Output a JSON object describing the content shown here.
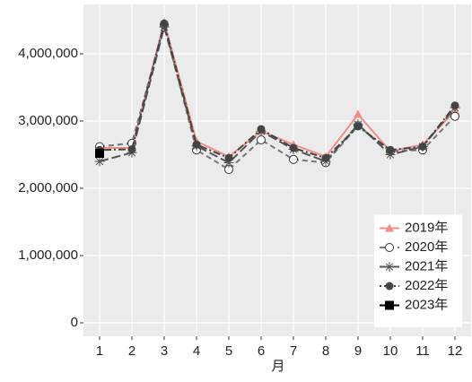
{
  "chart_data": {
    "type": "line",
    "x_label": "月",
    "categories": [
      "1",
      "2",
      "3",
      "4",
      "5",
      "6",
      "7",
      "8",
      "9",
      "10",
      "11",
      "12"
    ],
    "ylim": [
      -200000,
      4733000
    ],
    "yticks": [
      0,
      {
        "value": 1000000,
        "label": "1,000,000"
      },
      {
        "value": 2000000,
        "label": "2,000,000"
      },
      {
        "value": 3000000,
        "label": "3,000,000"
      },
      {
        "value": 4000000,
        "label": "4,000,000"
      }
    ],
    "grid": true,
    "legend": "bottom-right",
    "series": [
      {
        "name": "2019年",
        "color": "#f28e8a",
        "dash": "solid",
        "marker": "triangle",
        "values": [
          2600000,
          2600000,
          4470000,
          2700000,
          2470000,
          2850000,
          2650000,
          2470000,
          3100000,
          2550000,
          2650000,
          3150000
        ]
      },
      {
        "name": "2020年",
        "color": "#777777",
        "dash": "dashed",
        "marker": "circle-open",
        "values": [
          2620000,
          2670000,
          4430000,
          2570000,
          2280000,
          2720000,
          2430000,
          2380000,
          2930000,
          2550000,
          2570000,
          3070000
        ]
      },
      {
        "name": "2021年",
        "color": "#555555",
        "dash": "longdash",
        "marker": "asterisk",
        "values": [
          2400000,
          2530000,
          4400000,
          2630000,
          2380000,
          2850000,
          2580000,
          2400000,
          2950000,
          2500000,
          2620000,
          3200000
        ]
      },
      {
        "name": "2022年",
        "color": "#444444",
        "dash": "dotdash",
        "marker": "circle",
        "values": [
          2570000,
          2580000,
          4450000,
          2650000,
          2450000,
          2880000,
          2600000,
          2450000,
          2920000,
          2570000,
          2620000,
          3230000
        ]
      },
      {
        "name": "2023年",
        "color": "#000000",
        "dash": "solid",
        "marker": "square",
        "values": [
          2520000,
          null,
          null,
          null,
          null,
          null,
          null,
          null,
          null,
          null,
          null,
          null
        ]
      }
    ]
  }
}
